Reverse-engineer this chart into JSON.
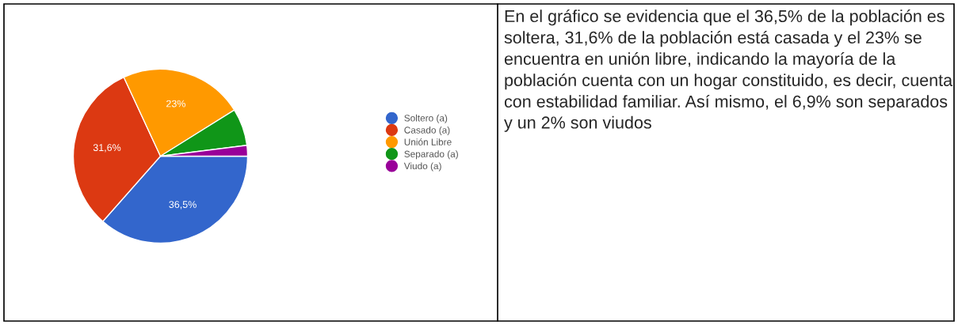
{
  "chart_data": {
    "type": "pie",
    "categories": [
      "Soltero (a)",
      "Casado (a)",
      "Unión Libre",
      "Separado (a)",
      "Viudo (a)"
    ],
    "values": [
      36.5,
      31.6,
      23,
      6.9,
      2
    ],
    "colors": [
      "#3366cc",
      "#dc3912",
      "#ff9900",
      "#109618",
      "#990099"
    ],
    "value_labels": [
      "36,5%",
      "31,6%",
      "23%",
      null,
      null
    ],
    "legend": "right",
    "annotations": [
      "En el gráfico se evidencia que el 36,5% de la población es soltera, 31,6% de la población está casada y el 23% se encuentra en unión libre, indicando la mayoría de la población cuenta con un hogar constituido, es decir, cuenta con estabilidad familiar. Así mismo, el 6,9% son separados y un 2% son viudos"
    ]
  }
}
